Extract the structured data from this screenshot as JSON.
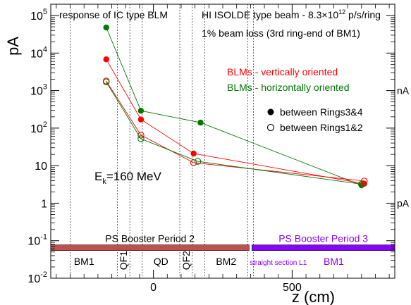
{
  "chart_data": {
    "type": "scatter",
    "xlabel": "z (cm)",
    "ylabel": "pA",
    "xlim": [
      -370,
      870
    ],
    "ylim": [
      0.01,
      200000
    ],
    "yscale": "log",
    "x_ticks": [
      {
        "value": 0,
        "label": "0"
      },
      {
        "value": 500,
        "label": "500"
      }
    ],
    "y_ticks": [
      {
        "value": 0.01,
        "base": "10",
        "exp": "-2"
      },
      {
        "value": 0.1,
        "base": "10",
        "exp": "-1"
      },
      {
        "value": 1,
        "base": "1",
        "exp": ""
      },
      {
        "value": 10,
        "base": "10",
        "exp": ""
      },
      {
        "value": 100,
        "base": "10",
        "exp": "2"
      },
      {
        "value": 1000,
        "base": "10",
        "exp": "3"
      },
      {
        "value": 10000,
        "base": "10",
        "exp": "4"
      },
      {
        "value": 100000,
        "base": "10",
        "exp": "5"
      }
    ],
    "right_labels": [
      {
        "value": 1000,
        "label": "nA"
      },
      {
        "value": 1,
        "label": "pA"
      }
    ],
    "title_left": "response of IC type BLM",
    "title_right": {
      "pre": "HI ISOLDE type beam - 8.3×10",
      "sup": "12",
      "post": " p/s/ring"
    },
    "subtitle": "1% beam loss (3rd ring-end of BM1)",
    "energy_label": {
      "pre": "E",
      "sub": "k",
      "post": "=160 MeV"
    },
    "legend_color": [
      {
        "label": "BLMs - vertically oriented",
        "color": "#ff0000"
      },
      {
        "label": "BLMs - horizontally oriented",
        "color": "#007700"
      }
    ],
    "legend_marker": [
      {
        "label": "between Rings3&4",
        "marker": "filled"
      },
      {
        "label": "between Rings1&2",
        "marker": "open"
      }
    ],
    "series": [
      {
        "name": "BLMs - horizontally oriented",
        "marker": "filled",
        "color": "#007700",
        "x": [
          -170,
          -45,
          170,
          750
        ],
        "y": [
          48000,
          290,
          140,
          3.0
        ]
      },
      {
        "name": "BLMs - vertically oriented",
        "marker": "filled",
        "color": "#ff0000",
        "x": [
          -170,
          -45,
          145,
          760
        ],
        "y": [
          6800,
          170,
          21,
          3.3
        ]
      },
      {
        "name": "BLMs - vertically oriented",
        "marker": "open",
        "color": "#ff0000",
        "x": [
          -170,
          -45,
          145,
          760
        ],
        "y": [
          1800,
          65,
          12,
          3.9
        ]
      },
      {
        "name": "BLMs - horizontally oriented",
        "marker": "open",
        "color": "#007700",
        "x": [
          -170,
          -45,
          160,
          750
        ],
        "y": [
          1700,
          52,
          13,
          3.2
        ]
      }
    ],
    "section_lines": [
      -300,
      -130,
      -85,
      -40,
      95,
      140,
      185,
      340,
      360
    ],
    "elements": [
      {
        "label": "BM1",
        "x": -250,
        "rotated": false,
        "color": "#000000"
      },
      {
        "label": "QF1",
        "x": -108,
        "rotated": true,
        "color": "#000000"
      },
      {
        "label": "QD",
        "x": 27,
        "rotated": false,
        "color": "#000000"
      },
      {
        "label": "QF2",
        "x": 118,
        "rotated": true,
        "color": "#000000"
      },
      {
        "label": "BM2",
        "x": 262,
        "rotated": false,
        "color": "#000000"
      },
      {
        "label": "straight section L1",
        "x": 450,
        "rotated": false,
        "color": "#8800ff",
        "small": true
      },
      {
        "label": "BM1",
        "x": 650,
        "rotated": false,
        "color": "#8800ff"
      }
    ],
    "periods": [
      {
        "label": "PS Booster Period 2",
        "x_from": -370,
        "x_to": 345,
        "color": "#c0504d",
        "text_color": "#000000"
      },
      {
        "label": "PS Booster Period 3",
        "x_from": 355,
        "x_to": 870,
        "color": "#8800ff",
        "text_color": "#8800ff"
      }
    ]
  }
}
